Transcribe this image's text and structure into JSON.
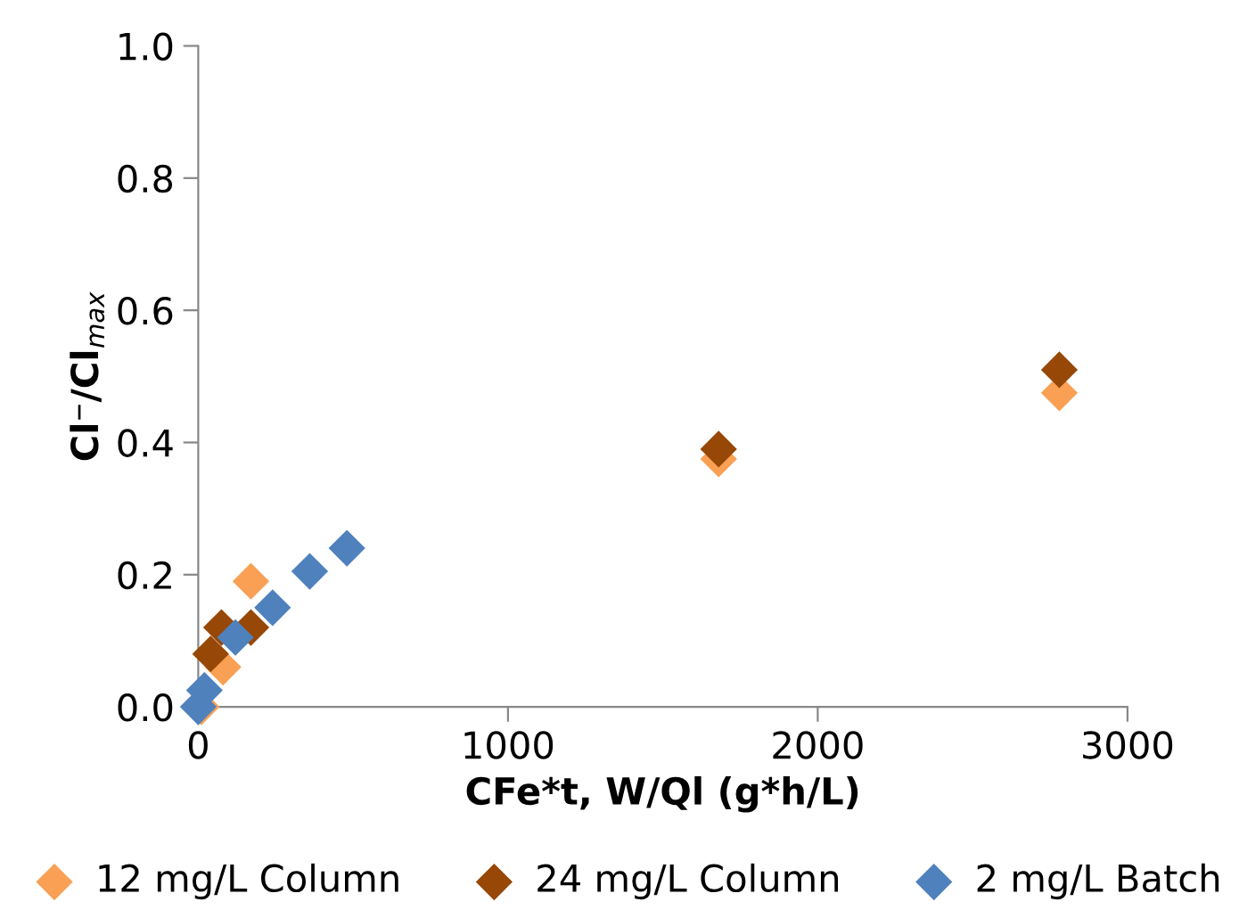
{
  "chart_data": {
    "type": "scatter",
    "xlabel": "CFe*t, W/Ql (g*h/L)",
    "ylabel": "Cl⁻/Cl$_{max}$",
    "xlim": [
      0,
      3000
    ],
    "ylim": [
      0,
      1.0
    ],
    "xticks": [
      0,
      1000,
      2000,
      3000
    ],
    "yticks": [
      {
        "value": 0,
        "label": "0.0"
      },
      {
        "value": 0.2,
        "label": "0.2"
      },
      {
        "value": 0.4,
        "label": "0.4"
      },
      {
        "value": 0.6,
        "label": "0.6"
      },
      {
        "value": 0.8,
        "label": "0.8"
      },
      {
        "value": 1.0,
        "label": "1.0"
      }
    ],
    "marker": "diamond",
    "legend": "bottom",
    "grid": false,
    "series": [
      {
        "name": "12 mg/L Column",
        "color": "#f9a055",
        "x": [
          10,
          80,
          170,
          1680,
          2780
        ],
        "values": [
          0.0,
          0.06,
          0.19,
          0.375,
          0.475
        ]
      },
      {
        "name": "24 mg/L Column",
        "color": "#974706",
        "x": [
          40,
          75,
          170,
          1680,
          2780
        ],
        "values": [
          0.08,
          0.12,
          0.12,
          0.39,
          0.51
        ]
      },
      {
        "name": "2 mg/L Batch",
        "color": "#4f81bd",
        "x": [
          0,
          20,
          120,
          240,
          360,
          480
        ],
        "values": [
          0.0,
          0.025,
          0.105,
          0.15,
          0.205,
          0.24
        ]
      }
    ]
  }
}
